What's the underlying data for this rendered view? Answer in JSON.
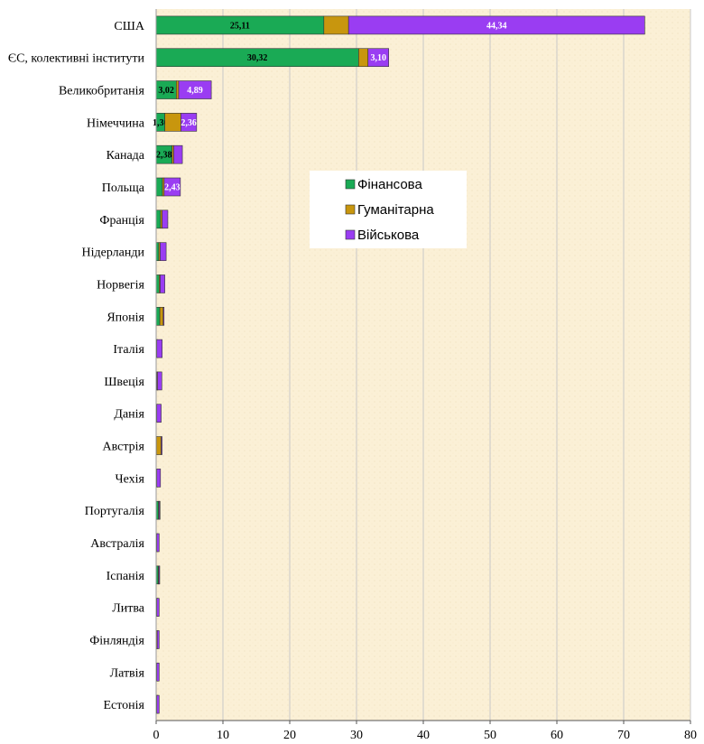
{
  "chart_data": {
    "type": "bar",
    "orientation": "horizontal",
    "stacked": true,
    "categories": [
      "США",
      "ЄС, колективні інститути",
      "Великобританія",
      "Німеччина",
      "Канада",
      "Польща",
      "Франція",
      "Нідерланди",
      "Норвегія",
      "Японія",
      "Італія",
      "Швеція",
      "Данія",
      "Австрія",
      "Чехія",
      "Португалія",
      "Австралія",
      "Іспанія",
      "Литва",
      "Фінляндія",
      "Латвія",
      "Естонія"
    ],
    "series": [
      {
        "name": "Фінансова",
        "color": "#1aaa55",
        "values": [
          25.11,
          30.32,
          3.02,
          1.3,
          2.38,
          0.95,
          0.65,
          0.4,
          0.45,
          0.55,
          0.05,
          0.1,
          0.05,
          0.05,
          0.05,
          0.35,
          0.05,
          0.3,
          0.05,
          0.05,
          0.05,
          0.05
        ],
        "labels": [
          "25,11",
          "30,32",
          "3,02",
          "1,30",
          "2,38",
          "",
          "",
          "",
          "",
          "",
          "",
          "",
          "",
          "",
          "",
          "",
          "",
          "",
          "",
          "",
          "",
          ""
        ]
      },
      {
        "name": "Гуманітарна",
        "color": "#c8960e",
        "values": [
          3.7,
          1.4,
          0.35,
          2.4,
          0.25,
          0.25,
          0.25,
          0.2,
          0.15,
          0.5,
          0.05,
          0.1,
          0.05,
          0.7,
          0.05,
          0.1,
          0.05,
          0.1,
          0.05,
          0.1,
          0.05,
          0.05
        ],
        "labels": [
          "",
          "",
          "",
          "",
          "",
          "",
          "",
          "",
          "",
          "",
          "",
          "",
          "",
          "",
          "",
          "",
          "",
          "",
          "",
          "",
          "",
          ""
        ]
      },
      {
        "name": "Військова",
        "color": "#9a3df2",
        "values": [
          44.34,
          3.1,
          4.89,
          2.36,
          1.3,
          2.43,
          0.85,
          0.9,
          0.7,
          0.1,
          0.8,
          0.65,
          0.65,
          0.05,
          0.55,
          0.05,
          0.35,
          0.1,
          0.35,
          0.3,
          0.35,
          0.35
        ],
        "labels": [
          "44,34",
          "3,10",
          "4,89",
          "2,36",
          "",
          "2,43",
          "",
          "",
          "",
          "",
          "",
          "",
          "",
          "",
          "",
          "",
          "",
          "",
          "",
          "",
          "",
          ""
        ]
      }
    ],
    "xlim": [
      0,
      80
    ],
    "xticks": [
      "0",
      "10",
      "20",
      "30",
      "40",
      "50",
      "60",
      "70",
      "80"
    ],
    "grid": true,
    "legend_position": "center-right",
    "background_color": "#fbf0d6",
    "grid_color": "#c8c8c8"
  }
}
